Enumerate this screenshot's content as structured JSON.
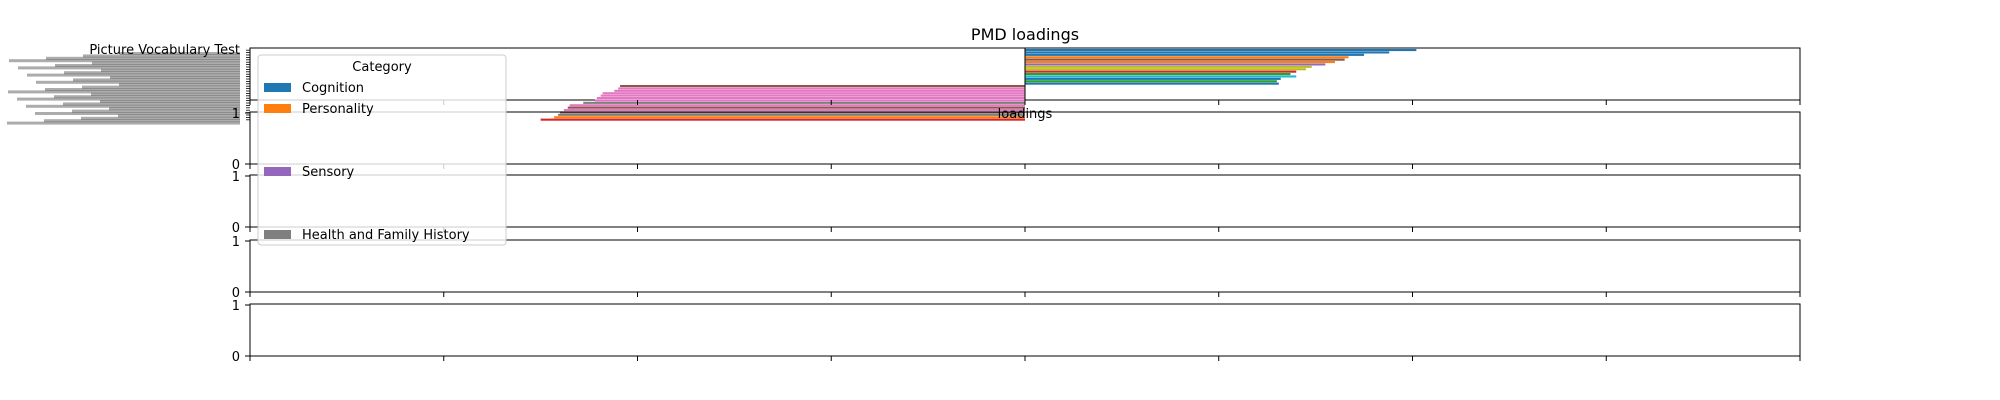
{
  "chart_data": [
    {
      "type": "bar",
      "orientation": "horizontal",
      "title": "PMD loadings",
      "xlabel": "loadings",
      "ylabel": "",
      "xlim": [
        -0.4,
        0.4
      ],
      "visible_tick_labels": [
        "Picture Vocabulary Test"
      ],
      "legend": {
        "title": "Category",
        "placement": "upper-left",
        "visible_entries": [
          {
            "label": "Cognition",
            "color": "#1f77b4"
          },
          {
            "label": "Personality",
            "color": "#ff7f0e"
          },
          {
            "label": "Sensory",
            "color": "#9467bd"
          },
          {
            "label": "Health and Family History",
            "color": "#7f7f7f"
          }
        ]
      },
      "series_colors": [
        "#1f77b4",
        "#ff7f0e",
        "#2ca02c",
        "#d62728",
        "#9467bd",
        "#8c564b",
        "#e377c2",
        "#7f7f7f",
        "#bcbd22",
        "#17becf"
      ],
      "bars_positive": [
        {
          "value": 0.202,
          "color": "#1f77b4"
        },
        {
          "value": 0.188,
          "color": "#1f77b4"
        },
        {
          "value": 0.175,
          "color": "#1f77b4"
        },
        {
          "value": 0.167,
          "color": "#ff7f0e"
        },
        {
          "value": 0.165,
          "color": "#8c564b"
        },
        {
          "value": 0.16,
          "color": "#ff7f0e"
        },
        {
          "value": 0.155,
          "color": "#9467bd"
        },
        {
          "value": 0.148,
          "color": "#bcbd22"
        },
        {
          "value": 0.145,
          "color": "#bcbd22"
        },
        {
          "value": 0.14,
          "color": "#d62728"
        },
        {
          "value": 0.137,
          "color": "#2ca02c"
        },
        {
          "value": 0.14,
          "color": "#17becf"
        },
        {
          "value": 0.132,
          "color": "#1f77b4"
        },
        {
          "value": 0.13,
          "color": "#2ca02c"
        },
        {
          "value": 0.131,
          "color": "#1f77b4"
        }
      ],
      "bars_negative": [
        {
          "value": -0.209,
          "color": "#8c564b"
        },
        {
          "value": -0.21,
          "color": "#e377c2"
        },
        {
          "value": -0.212,
          "color": "#e377c2"
        },
        {
          "value": -0.218,
          "color": "#e377c2"
        },
        {
          "value": -0.219,
          "color": "#e377c2"
        },
        {
          "value": -0.221,
          "color": "#e377c2"
        },
        {
          "value": -0.222,
          "color": "#e377c2"
        },
        {
          "value": -0.228,
          "color": "#7f7f7f"
        },
        {
          "value": -0.235,
          "color": "#e377c2"
        },
        {
          "value": -0.236,
          "color": "#8c564b"
        },
        {
          "value": -0.238,
          "color": "#e377c2"
        },
        {
          "value": -0.24,
          "color": "#8c564b"
        },
        {
          "value": -0.241,
          "color": "#7f7f7f"
        },
        {
          "value": -0.243,
          "color": "#ff7f0e"
        },
        {
          "value": -0.25,
          "color": "#d62728"
        }
      ]
    },
    {
      "type": "bar",
      "title": "",
      "ylim": [
        0,
        1
      ],
      "y_ticks": [
        "0",
        "1"
      ]
    },
    {
      "type": "bar",
      "title": "",
      "ylim": [
        0,
        1
      ],
      "y_ticks": [
        "0",
        "1"
      ]
    },
    {
      "type": "bar",
      "title": "",
      "ylim": [
        0,
        1
      ],
      "y_ticks": [
        "0",
        "1"
      ]
    },
    {
      "type": "bar",
      "title": "",
      "ylim": [
        0,
        1
      ],
      "y_ticks": [
        "0",
        "1"
      ]
    }
  ]
}
